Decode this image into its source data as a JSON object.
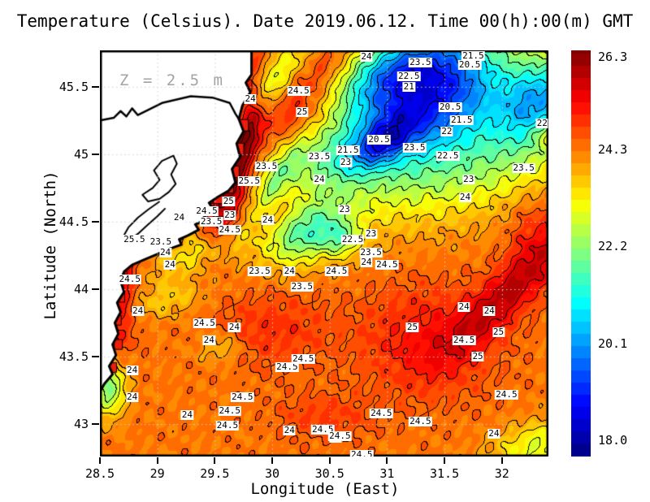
{
  "title": "Temperature (Celsius). Date 2019.06.12. Time 00(h):00(m) GMT",
  "annotation": {
    "depth_label": "Z = 2.5 m"
  },
  "axes": {
    "x": {
      "label": "Longitude (East)",
      "range": [
        28.5,
        32.405
      ],
      "ticks": [
        28.5,
        29,
        29.5,
        30,
        30.5,
        31,
        31.5,
        32
      ]
    },
    "y": {
      "label": "Latitude (North)",
      "range": [
        42.76,
        45.77
      ],
      "ticks": [
        43,
        43.5,
        44,
        44.5,
        45,
        45.5
      ]
    }
  },
  "colorbar": {
    "min": 18.0,
    "max": 26.3,
    "tick_values": [
      26.3,
      24.3,
      22.2,
      20.1,
      18.0
    ],
    "tick_labels": [
      "26.3",
      "24.3",
      "22.2",
      "20.1",
      "18.0"
    ]
  },
  "palette": {
    "cold_deep": "#000083",
    "cold": "#0070ff",
    "cyan": "#00e8e8",
    "green": "#7cfa8c",
    "yellow": "#ffff00",
    "orange": "#ff7800",
    "red": "#ff1400",
    "hot_deep": "#800000",
    "land": "#ffffff",
    "coastline": "#000000",
    "grid": "#cfcfcf",
    "annotation_gray": "#a3a3a3",
    "warm_cell_red": "#ee1c0c"
  },
  "chart_data": {
    "type": "heatmap",
    "field": "sea temperature",
    "units": "Celsius",
    "title": "Temperature (Celsius). Date 2019.06.12. Time 00(h):00(m) GMT",
    "xlabel": "Longitude (East)",
    "ylabel": "Latitude (North)",
    "x_range": [
      28.5,
      32.405
    ],
    "y_range": [
      42.76,
      45.77
    ],
    "value_range": [
      18.0,
      26.3
    ],
    "contour_interval": 0.5,
    "shade_interval": 0.25,
    "base_value": 24.3,
    "blobs": [
      [
        31.15,
        45.6,
        0.5,
        0.22,
        -20,
        -4.6
      ],
      [
        31.55,
        45.38,
        0.45,
        0.22,
        -25,
        -3.0
      ],
      [
        32.35,
        45.42,
        0.3,
        0.2,
        -30,
        -3.0
      ],
      [
        30.97,
        45.1,
        0.22,
        0.1,
        -30,
        -2.2
      ],
      [
        31.6,
        44.95,
        0.9,
        0.28,
        -10,
        -1.9
      ],
      [
        30.55,
        45.0,
        0.45,
        0.18,
        -15,
        -1.5
      ],
      [
        30.28,
        44.42,
        0.26,
        0.15,
        -20,
        -2.3
      ],
      [
        30.6,
        44.37,
        0.12,
        0.09,
        0,
        -1.4
      ],
      [
        29.95,
        45.5,
        0.42,
        0.11,
        -38,
        -1.7
      ],
      [
        30.25,
        45.32,
        0.33,
        0.18,
        -20,
        1.3
      ],
      [
        30.45,
        45.68,
        0.25,
        0.13,
        -25,
        1.0
      ],
      [
        29.62,
        44.8,
        0.1,
        0.32,
        15,
        2.3
      ],
      [
        29.82,
        45.3,
        0.07,
        0.3,
        8,
        1.6
      ],
      [
        28.62,
        44.1,
        0.13,
        0.4,
        0,
        1.4
      ],
      [
        28.64,
        44.4,
        0.1,
        0.15,
        0,
        1.2
      ],
      [
        28.58,
        43.28,
        0.1,
        0.15,
        0,
        -2.3
      ],
      [
        29.37,
        44.28,
        0.3,
        0.1,
        -20,
        -1.0
      ],
      [
        29.08,
        43.92,
        0.25,
        0.09,
        -10,
        -0.7
      ],
      [
        29.55,
        43.57,
        0.14,
        0.08,
        0,
        -0.7
      ],
      [
        31.35,
        43.62,
        0.4,
        0.28,
        0,
        0.9
      ],
      [
        32.02,
        43.95,
        0.42,
        0.12,
        -40,
        1.4
      ],
      [
        32.3,
        44.4,
        0.18,
        0.25,
        0,
        0.7
      ],
      [
        32.35,
        42.85,
        0.3,
        0.12,
        -10,
        -1.4
      ],
      [
        30.0,
        43.7,
        0.35,
        0.2,
        0,
        0.6
      ],
      [
        30.45,
        43.05,
        0.3,
        0.12,
        0,
        0.5
      ],
      [
        30.0,
        44.55,
        0.25,
        0.12,
        -20,
        0.6
      ],
      [
        30.02,
        44.78,
        0.28,
        0.07,
        -55,
        -1.2
      ],
      [
        32.42,
        45.15,
        0.1,
        0.08,
        0,
        1.2
      ]
    ],
    "contour_labels": [
      [
        "24",
        30.82,
        45.72
      ],
      [
        "23.5",
        31.29,
        45.68
      ],
      [
        "21.5",
        31.75,
        45.73
      ],
      [
        "20.5",
        31.72,
        45.66
      ],
      [
        "22.5",
        31.19,
        45.58
      ],
      [
        "21",
        31.19,
        45.5
      ],
      [
        "20.5",
        31.55,
        45.35
      ],
      [
        "21.5",
        31.65,
        45.25
      ],
      [
        "22",
        31.52,
        45.17
      ],
      [
        "20.5",
        30.93,
        45.11
      ],
      [
        "21.5",
        30.66,
        45.03
      ],
      [
        "23.5",
        31.24,
        45.05
      ],
      [
        "23",
        30.64,
        44.94
      ],
      [
        "22.5",
        31.53,
        44.99
      ],
      [
        "23.5",
        30.41,
        44.98
      ],
      [
        "22",
        32.35,
        45.23
      ],
      [
        "23.5",
        32.19,
        44.9
      ],
      [
        "23",
        31.71,
        44.81
      ],
      [
        "24",
        31.68,
        44.68
      ],
      [
        "24",
        29.81,
        45.41
      ],
      [
        "24.5",
        30.23,
        45.47
      ],
      [
        "25",
        30.26,
        45.31
      ],
      [
        "23.5",
        29.95,
        44.91
      ],
      [
        "25.5",
        29.8,
        44.8
      ],
      [
        "25",
        29.62,
        44.65
      ],
      [
        "24.5",
        29.43,
        44.58
      ],
      [
        "23",
        29.63,
        44.55
      ],
      [
        "24",
        29.19,
        44.53
      ],
      [
        "23.5",
        29.47,
        44.5
      ],
      [
        "24",
        29.96,
        44.51
      ],
      [
        "24.5",
        29.63,
        44.44
      ],
      [
        "25.5",
        28.8,
        44.37
      ],
      [
        "23.5",
        29.03,
        44.35
      ],
      [
        "24",
        29.07,
        44.27
      ],
      [
        "24",
        29.11,
        44.18
      ],
      [
        "23.5",
        29.89,
        44.13
      ],
      [
        "24.5",
        28.76,
        44.07
      ],
      [
        "24",
        28.83,
        43.84
      ],
      [
        "24.5",
        29.41,
        43.75
      ],
      [
        "24",
        29.67,
        43.72
      ],
      [
        "24",
        29.45,
        43.62
      ],
      [
        "24",
        28.78,
        43.4
      ],
      [
        "24",
        28.78,
        43.2
      ],
      [
        "24.5",
        30.13,
        43.42
      ],
      [
        "24.5",
        29.74,
        43.2
      ],
      [
        "24",
        29.26,
        43.07
      ],
      [
        "24.5",
        29.63,
        43.1
      ],
      [
        "24.5",
        29.61,
        42.99
      ],
      [
        "24",
        30.15,
        42.95
      ],
      [
        "24.5",
        30.44,
        42.96
      ],
      [
        "24",
        30.55,
        42.9
      ],
      [
        "24",
        30.41,
        44.81
      ],
      [
        "23",
        30.63,
        44.59
      ],
      [
        "23",
        30.86,
        44.41
      ],
      [
        "22.5",
        30.7,
        44.37
      ],
      [
        "23.5",
        30.86,
        44.27
      ],
      [
        "24",
        30.82,
        44.2
      ],
      [
        "24.5",
        31.0,
        44.18
      ],
      [
        "24",
        30.15,
        44.13
      ],
      [
        "23.5",
        30.26,
        44.02
      ],
      [
        "24.5",
        30.56,
        44.13
      ],
      [
        "25",
        31.22,
        43.72
      ],
      [
        "24",
        31.67,
        43.87
      ],
      [
        "24.5",
        31.67,
        43.62
      ],
      [
        "24.5",
        30.27,
        43.48
      ],
      [
        "24",
        31.89,
        43.84
      ],
      [
        "25",
        31.97,
        43.68
      ],
      [
        "25",
        31.79,
        43.5
      ],
      [
        "24.5",
        32.04,
        43.22
      ],
      [
        "24.5",
        30.95,
        43.08
      ],
      [
        "24.5",
        31.29,
        43.02
      ],
      [
        "24.5",
        30.59,
        42.91
      ],
      [
        "24",
        31.93,
        42.93
      ],
      [
        "24.5",
        30.78,
        42.77
      ]
    ],
    "coastline": {
      "outline": [
        [
          28.5,
          45.77
        ],
        [
          29.82,
          45.77
        ],
        [
          29.82,
          45.59
        ],
        [
          29.77,
          45.53
        ],
        [
          29.81,
          45.46
        ],
        [
          29.74,
          45.36
        ],
        [
          29.71,
          45.26
        ],
        [
          29.75,
          45.17
        ],
        [
          29.69,
          45.08
        ],
        [
          29.72,
          44.98
        ],
        [
          29.65,
          44.89
        ],
        [
          29.68,
          44.79
        ],
        [
          29.62,
          44.73
        ],
        [
          29.52,
          44.68
        ],
        [
          29.45,
          44.64
        ],
        [
          29.48,
          44.6
        ],
        [
          29.39,
          44.56
        ],
        [
          29.43,
          44.52
        ],
        [
          29.33,
          44.48
        ],
        [
          29.36,
          44.44
        ],
        [
          29.27,
          44.4
        ],
        [
          29.19,
          44.37
        ],
        [
          29.21,
          44.33
        ],
        [
          29.11,
          44.3
        ],
        [
          29.0,
          44.26
        ],
        [
          28.89,
          44.22
        ],
        [
          28.78,
          44.18
        ],
        [
          28.71,
          44.13
        ],
        [
          28.68,
          44.06
        ],
        [
          28.71,
          43.98
        ],
        [
          28.65,
          43.9
        ],
        [
          28.68,
          43.83
        ],
        [
          28.63,
          43.75
        ],
        [
          28.66,
          43.67
        ],
        [
          28.61,
          43.59
        ],
        [
          28.64,
          43.51
        ],
        [
          28.58,
          43.43
        ],
        [
          28.61,
          43.37
        ],
        [
          28.54,
          43.3
        ],
        [
          28.5,
          43.24
        ]
      ],
      "estuary_line": [
        [
          28.5,
          45.25
        ],
        [
          28.62,
          45.27
        ],
        [
          28.68,
          45.32
        ],
        [
          28.73,
          45.28
        ],
        [
          28.78,
          45.34
        ],
        [
          28.83,
          45.29
        ],
        [
          29.04,
          45.38
        ],
        [
          29.29,
          45.43
        ],
        [
          29.48,
          45.42
        ],
        [
          29.63,
          45.38
        ],
        [
          29.68,
          45.3
        ],
        [
          29.71,
          45.26
        ]
      ],
      "lagoon_loop": [
        [
          29.14,
          44.99
        ],
        [
          29.04,
          44.95
        ],
        [
          28.97,
          44.88
        ],
        [
          29.02,
          44.81
        ],
        [
          28.96,
          44.75
        ],
        [
          28.87,
          44.7
        ],
        [
          28.92,
          44.65
        ],
        [
          29.02,
          44.67
        ],
        [
          29.1,
          44.72
        ],
        [
          29.16,
          44.78
        ],
        [
          29.12,
          44.85
        ],
        [
          29.17,
          44.93
        ]
      ],
      "lagoon_line": [
        [
          29.02,
          44.65
        ],
        [
          28.92,
          44.59
        ],
        [
          28.83,
          44.53
        ],
        [
          28.75,
          44.46
        ],
        [
          28.71,
          44.4
        ],
        [
          28.75,
          44.36
        ],
        [
          28.83,
          44.41
        ],
        [
          28.92,
          44.48
        ],
        [
          29.0,
          44.54
        ],
        [
          29.07,
          44.6
        ]
      ],
      "warm_cells": [
        [
          29.66,
          45.695,
          14,
          26
        ],
        [
          29.78,
          45.51,
          12,
          14
        ],
        [
          29.75,
          45.215,
          12,
          14
        ],
        [
          29.71,
          45.04,
          12,
          14
        ],
        [
          29.67,
          44.87,
          12,
          14
        ],
        [
          29.62,
          44.75,
          12,
          12
        ],
        [
          29.53,
          44.67,
          12,
          12
        ],
        [
          29.45,
          44.6,
          12,
          12
        ],
        [
          29.36,
          44.53,
          12,
          12
        ],
        [
          29.27,
          44.45,
          12,
          12
        ],
        [
          29.18,
          44.4,
          11,
          11
        ],
        [
          28.81,
          44.36,
          13,
          13
        ],
        [
          28.72,
          44.28,
          12,
          12
        ],
        [
          28.68,
          44.12,
          10,
          12
        ],
        [
          28.68,
          43.94,
          10,
          12
        ],
        [
          28.65,
          43.77,
          10,
          12
        ],
        [
          28.66,
          43.59,
          10,
          12
        ],
        [
          28.61,
          43.42,
          10,
          12
        ]
      ]
    }
  }
}
